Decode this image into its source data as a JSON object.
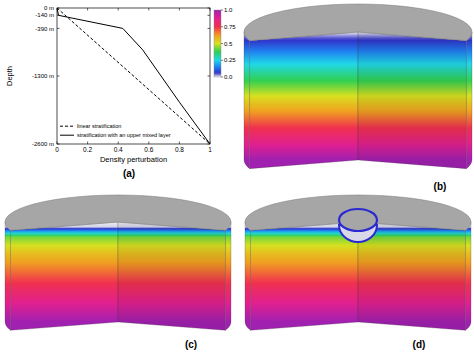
{
  "chart_data": {
    "type": "line",
    "xlabel": "Density perturbation",
    "ylabel": "Depth",
    "xlim": [
      0,
      1
    ],
    "ylim": [
      -2600,
      0
    ],
    "xticks": [
      0,
      0.2,
      0.4,
      0.6,
      0.8,
      1
    ],
    "yticks": [
      {
        "value": -2600,
        "label": "-2600 m"
      },
      {
        "value": -1300,
        "label": "-1300 m"
      },
      {
        "value": -390,
        "label": "-390 m"
      },
      {
        "value": -140,
        "label": "-140 m"
      },
      {
        "value": 0,
        "label": "0 m"
      }
    ],
    "legend": "lower left",
    "series": [
      {
        "name": "linear stratification",
        "color": "#000000",
        "line_style": "dashed",
        "x": [
          0,
          1
        ],
        "values": [
          0,
          -2600
        ]
      },
      {
        "name": "stratification with an upper mixed layer",
        "color": "#000000",
        "line_style": "solid",
        "x": [
          0,
          0.01,
          0.43,
          0.56,
          0.68,
          0.8,
          0.9,
          1
        ],
        "values": [
          0,
          -140,
          -390,
          -800,
          -1300,
          -1800,
          -2200,
          -2600
        ]
      }
    ],
    "colorbar_range": [
      0,
      1
    ],
    "colorbar_ticks": [
      {
        "value": 0,
        "label": "0.0"
      },
      0.25,
      0.5,
      0.75,
      {
        "value": 1,
        "label": "1.0"
      }
    ],
    "panel_label": "(a)"
  },
  "renderings": [
    {
      "label": "(b)"
    },
    {
      "label": "(c)"
    },
    {
      "label": "(d)"
    }
  ]
}
